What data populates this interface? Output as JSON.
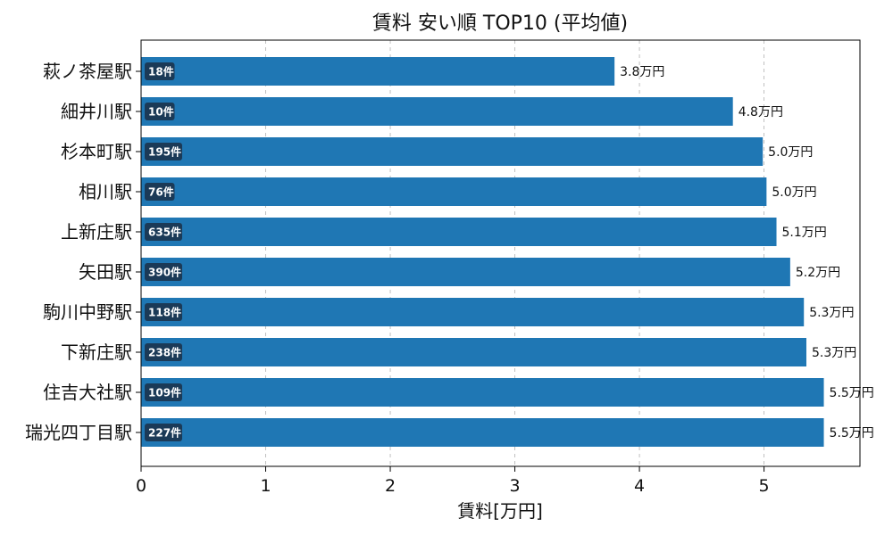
{
  "chart_data": {
    "type": "bar",
    "orientation": "horizontal",
    "title": "賃料 安い順 TOP10 (平均値)",
    "xlabel": "賃料[万円]",
    "ylabel": "",
    "xlim": [
      0,
      5.77
    ],
    "xticks": [
      0,
      1,
      2,
      3,
      4,
      5
    ],
    "grid": "x-dashed",
    "bar_color": "#1f77b4",
    "badge_color": "#1b3a57",
    "categories": [
      "萩ノ茶屋駅",
      "細井川駅",
      "杉本町駅",
      "相川駅",
      "上新庄駅",
      "矢田駅",
      "駒川中野駅",
      "下新庄駅",
      "住吉大社駅",
      "瑞光四丁目駅"
    ],
    "values": [
      3.8,
      4.75,
      4.99,
      5.02,
      5.1,
      5.21,
      5.32,
      5.34,
      5.48,
      5.48
    ],
    "value_labels": [
      "3.8万円",
      "4.8万円",
      "5.0万円",
      "5.0万円",
      "5.1万円",
      "5.2万円",
      "5.3万円",
      "5.3万円",
      "5.5万円",
      "5.5万円"
    ],
    "count_labels": [
      "18件",
      "10件",
      "195件",
      "76件",
      "635件",
      "390件",
      "118件",
      "238件",
      "109件",
      "227件"
    ]
  }
}
